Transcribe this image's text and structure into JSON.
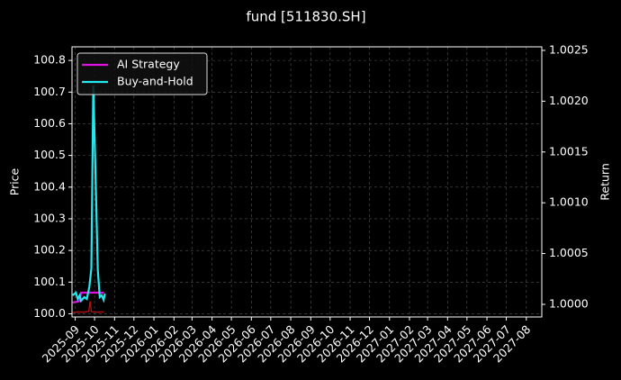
{
  "chart_data": {
    "type": "line",
    "title": "fund [511830.SH]",
    "ylabel": "Price",
    "y2label": "Return",
    "xlim": [
      "2025-08-27",
      "2027-08-25"
    ],
    "xticks": [
      "2025-09",
      "2025-10",
      "2025-11",
      "2025-12",
      "2026-01",
      "2026-02",
      "2026-03",
      "2026-04",
      "2026-05",
      "2026-06",
      "2026-07",
      "2026-08",
      "2026-09",
      "2026-10",
      "2026-11",
      "2026-12",
      "2027-01",
      "2027-02",
      "2027-03",
      "2027-04",
      "2027-05",
      "2027-06",
      "2027-07",
      "2027-08"
    ],
    "ylim": [
      99.99,
      100.843
    ],
    "yticks": [
      {
        "value": 100,
        "label": "100.0"
      },
      100.1,
      100.2,
      100.3,
      100.4,
      100.5,
      100.6,
      100.7,
      100.8
    ],
    "y2lim": [
      0.999876,
      1.002535
    ],
    "y2ticks": [
      {
        "value": 1,
        "label": "1.0000"
      },
      {
        "value": 1.0005,
        "label": "1.0005"
      },
      {
        "value": 1.001,
        "label": "1.0010"
      },
      {
        "value": 1.0015,
        "label": "1.0015"
      },
      {
        "value": 1.002,
        "label": "1.0020"
      },
      {
        "value": 1.0025,
        "label": "1.0025"
      }
    ],
    "grid": true,
    "legend": "upper left",
    "series": [
      {
        "color": "#b01010",
        "axis": "y",
        "x": [
          "2025-08-28",
          "2025-09-05",
          "2025-09-15",
          "2025-09-22",
          "2025-09-24",
          "2025-09-26",
          "2025-10-06",
          "2025-10-15"
        ],
        "values": [
          100.004,
          100.006,
          100.005,
          100.008,
          100.04,
          100.007,
          100.005,
          100.006
        ]
      },
      {
        "name": "AI Strategy",
        "color": "#e010e0",
        "axis": "y2",
        "x": [
          "2025-08-28",
          "2025-09-05",
          "2025-09-08",
          "2025-09-10",
          "2025-10-15"
        ],
        "values": [
          1.000018,
          1.000027,
          1.000035,
          1.000115,
          1.000115
        ]
      },
      {
        "name": "Buy-and-Hold",
        "color": "#22e8f0",
        "axis": "y2",
        "x": [
          "2025-08-28",
          "2025-09-02",
          "2025-09-05",
          "2025-09-08",
          "2025-09-10",
          "2025-09-15",
          "2025-09-19",
          "2025-09-23",
          "2025-09-26",
          "2025-09-29",
          "2025-10-02",
          "2025-10-06",
          "2025-10-09",
          "2025-10-12",
          "2025-10-15",
          "2025-10-17"
        ],
        "values": [
          1.000089,
          1.000115,
          1.000053,
          1.000089,
          1.000035,
          1.000071,
          1.000053,
          1.000177,
          1.000355,
          1.002154,
          1.001401,
          1.000337,
          1.000071,
          1.000089,
          1.000044,
          1.000106
        ]
      }
    ]
  }
}
